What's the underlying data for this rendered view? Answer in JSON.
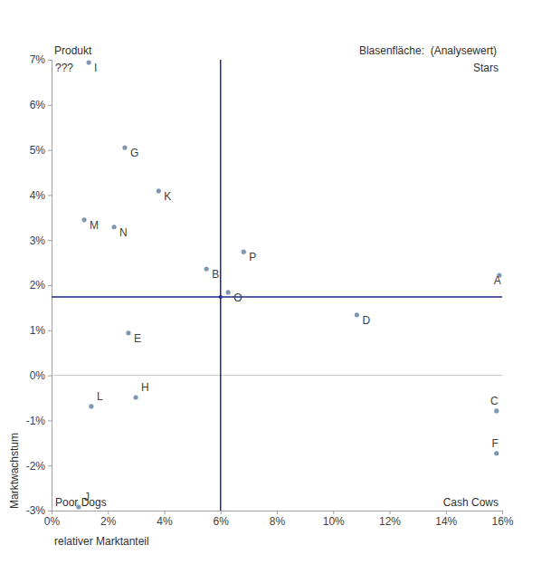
{
  "chart_data": {
    "type": "scatter",
    "title": "Produkt",
    "subtitle": "Blasenfläche:  (Analysewert)",
    "x_label": "relativer Marktanteil",
    "y_label": "Marktwachstum",
    "quadrant_labels": {
      "top_left": "???",
      "top_right": "Stars",
      "bottom_left": "Poor Dogs",
      "bottom_right": "Cash Cows"
    },
    "labels": [
      "I",
      "G",
      "K",
      "M",
      "N",
      "P",
      "B",
      "A",
      "O",
      "D",
      "E",
      "H",
      "L",
      "C",
      "F",
      "J"
    ],
    "x": [
      1.32,
      2.6,
      3.8,
      1.16,
      2.22,
      6.82,
      5.5,
      15.9,
      6.27,
      10.84,
      2.73,
      2.99,
      1.41,
      15.8,
      15.8,
      0.96
    ],
    "values": [
      6.94,
      5.05,
      4.09,
      3.45,
      3.29,
      2.74,
      2.36,
      2.22,
      1.84,
      1.34,
      0.94,
      -0.49,
      -0.69,
      -0.79,
      -1.73,
      -2.92
    ],
    "color": "#7f97b0",
    "x_reference": 6,
    "y_reference": 1.74,
    "xlim": [
      0,
      16
    ],
    "ylim": [
      -3,
      7
    ],
    "xticks": [
      {
        "value": 0,
        "label": "0%"
      },
      {
        "value": 2,
        "label": "2%"
      },
      {
        "value": 4,
        "label": "4%"
      },
      {
        "value": 6,
        "label": "6%"
      },
      {
        "value": 8,
        "label": "8%"
      },
      {
        "value": 10,
        "label": "10%"
      },
      {
        "value": 12,
        "label": "12%"
      },
      {
        "value": 14,
        "label": "14%"
      },
      {
        "value": 16,
        "label": "16%"
      }
    ],
    "yticks": [
      {
        "value": -3,
        "label": "-3%"
      },
      {
        "value": -2,
        "label": "-2%"
      },
      {
        "value": -1,
        "label": "-1%"
      },
      {
        "value": 0,
        "label": "0%"
      },
      {
        "value": 1,
        "label": "1%"
      },
      {
        "value": 2,
        "label": "2%"
      },
      {
        "value": 3,
        "label": "3%"
      },
      {
        "value": 4,
        "label": "4%"
      },
      {
        "value": 5,
        "label": "5%"
      },
      {
        "value": 6,
        "label": "6%"
      },
      {
        "value": 7,
        "label": "7%"
      }
    ]
  }
}
